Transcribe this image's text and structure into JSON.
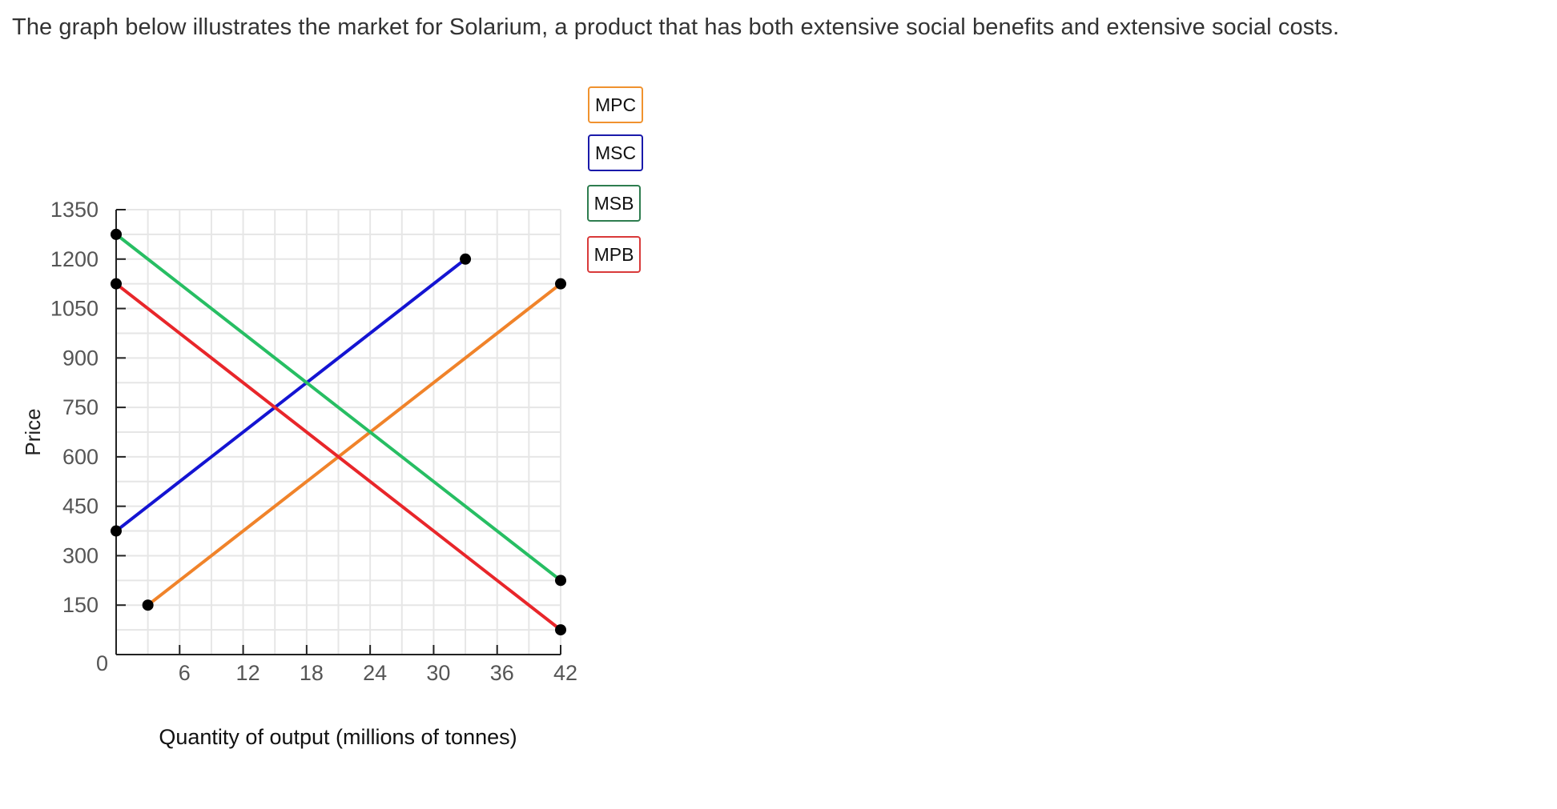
{
  "prompt": "The graph below illustrates the market for Solarium, a product that has both extensive social benefits and extensive social costs.",
  "chart_data": {
    "type": "line",
    "xlabel": "Quantity of output (millions of tonnes)",
    "ylabel": "Price",
    "xlim": [
      0,
      42
    ],
    "ylim": [
      0,
      1350
    ],
    "x_ticks": [
      "6",
      "12",
      "18",
      "24",
      "30",
      "36",
      "42"
    ],
    "y_ticks": [
      "0",
      "150",
      "300",
      "450",
      "600",
      "750",
      "900",
      "1050",
      "1200",
      "1350"
    ],
    "grid": true,
    "legend_position": "right",
    "series": [
      {
        "name": "MPC",
        "color": "#f0832a",
        "points": [
          [
            3,
            150
          ],
          [
            42,
            1125
          ]
        ]
      },
      {
        "name": "MSC",
        "color": "#1414d2",
        "points": [
          [
            0,
            375
          ],
          [
            33,
            1200
          ]
        ]
      },
      {
        "name": "MSB",
        "color": "#27be63",
        "points": [
          [
            0,
            1275
          ],
          [
            42,
            225
          ]
        ]
      },
      {
        "name": "MPB",
        "color": "#e8262a",
        "points": [
          [
            0,
            1125
          ],
          [
            42,
            75
          ]
        ]
      }
    ],
    "legend": [
      {
        "name": "MPC",
        "border": "#f0922e"
      },
      {
        "name": "MSC",
        "border": "#1a1aaa"
      },
      {
        "name": "MSB",
        "border": "#2e7d4f"
      },
      {
        "name": "MPB",
        "border": "#d93a3a"
      }
    ]
  }
}
